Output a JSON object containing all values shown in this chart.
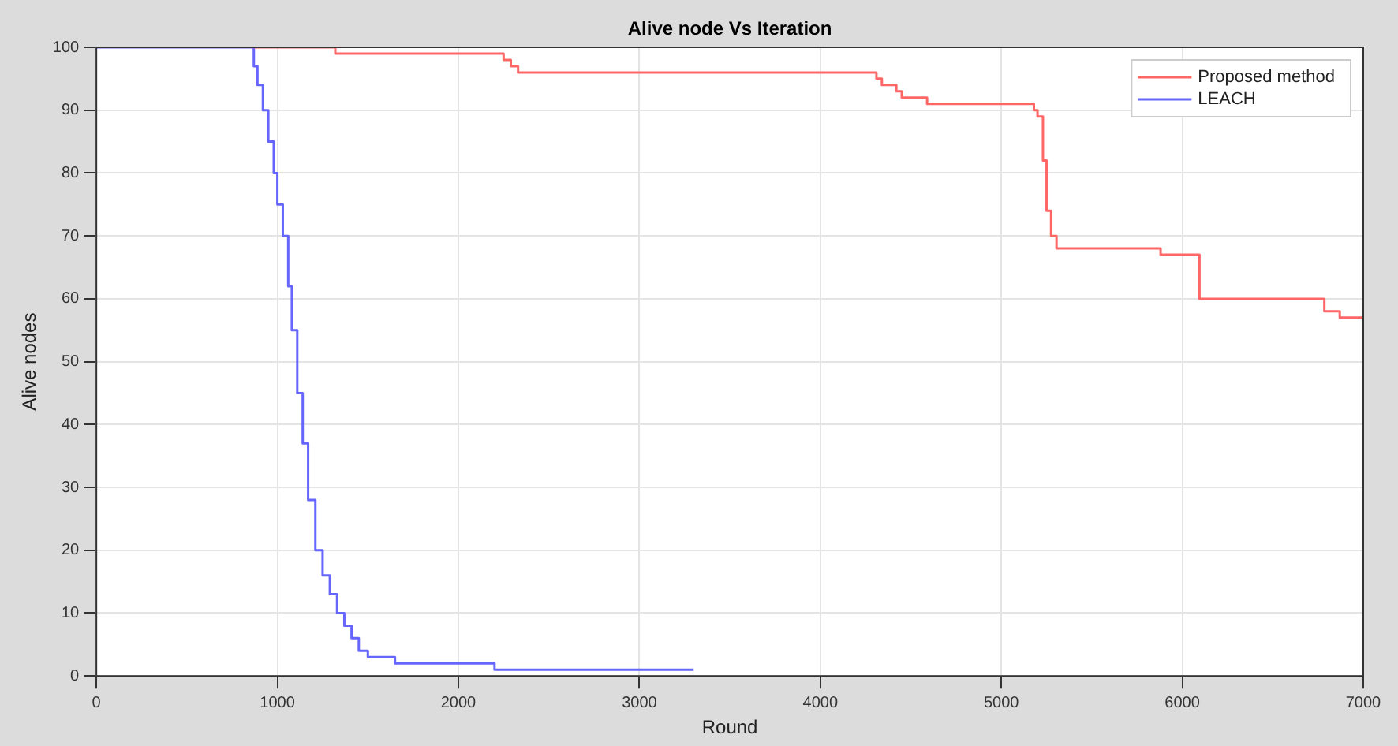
{
  "chart_data": {
    "type": "step",
    "title": "Alive node Vs Iteration",
    "xlabel": "Round",
    "ylabel": "Alive nodes",
    "series": [
      {
        "name": "Proposed method",
        "color": "#ff6666",
        "x": [
          870,
          1320,
          2250,
          2290,
          2330,
          4310,
          4340,
          4420,
          4450,
          4590,
          5180,
          5200,
          5230,
          5250,
          5275,
          5305,
          5880,
          6095,
          6785,
          6870,
          7000
        ],
        "values": [
          100,
          99,
          98,
          97,
          96,
          95,
          94,
          93,
          92,
          91,
          90,
          89,
          82,
          74,
          70,
          68,
          67,
          60,
          58,
          57,
          57
        ]
      },
      {
        "name": "LEACH",
        "color": "#6666ff",
        "x": [
          0,
          870,
          890,
          920,
          950,
          980,
          1000,
          1030,
          1060,
          1080,
          1110,
          1140,
          1170,
          1210,
          1250,
          1290,
          1330,
          1370,
          1410,
          1450,
          1500,
          1650,
          2200,
          3300
        ],
        "values": [
          100,
          97,
          94,
          90,
          85,
          80,
          75,
          70,
          62,
          55,
          45,
          37,
          28,
          20,
          16,
          13,
          10,
          8,
          6,
          4,
          3,
          2,
          1,
          1
        ]
      }
    ],
    "xlim": [
      0,
      7000
    ],
    "xticks": [
      0,
      1000,
      2000,
      3000,
      4000,
      5000,
      6000,
      7000
    ],
    "ylim": [
      0,
      100
    ],
    "yticks": [
      0,
      10,
      20,
      30,
      40,
      50,
      60,
      70,
      80,
      90,
      100
    ],
    "grid": true,
    "legend": "top right",
    "marker": "none",
    "line_style": "solid"
  }
}
